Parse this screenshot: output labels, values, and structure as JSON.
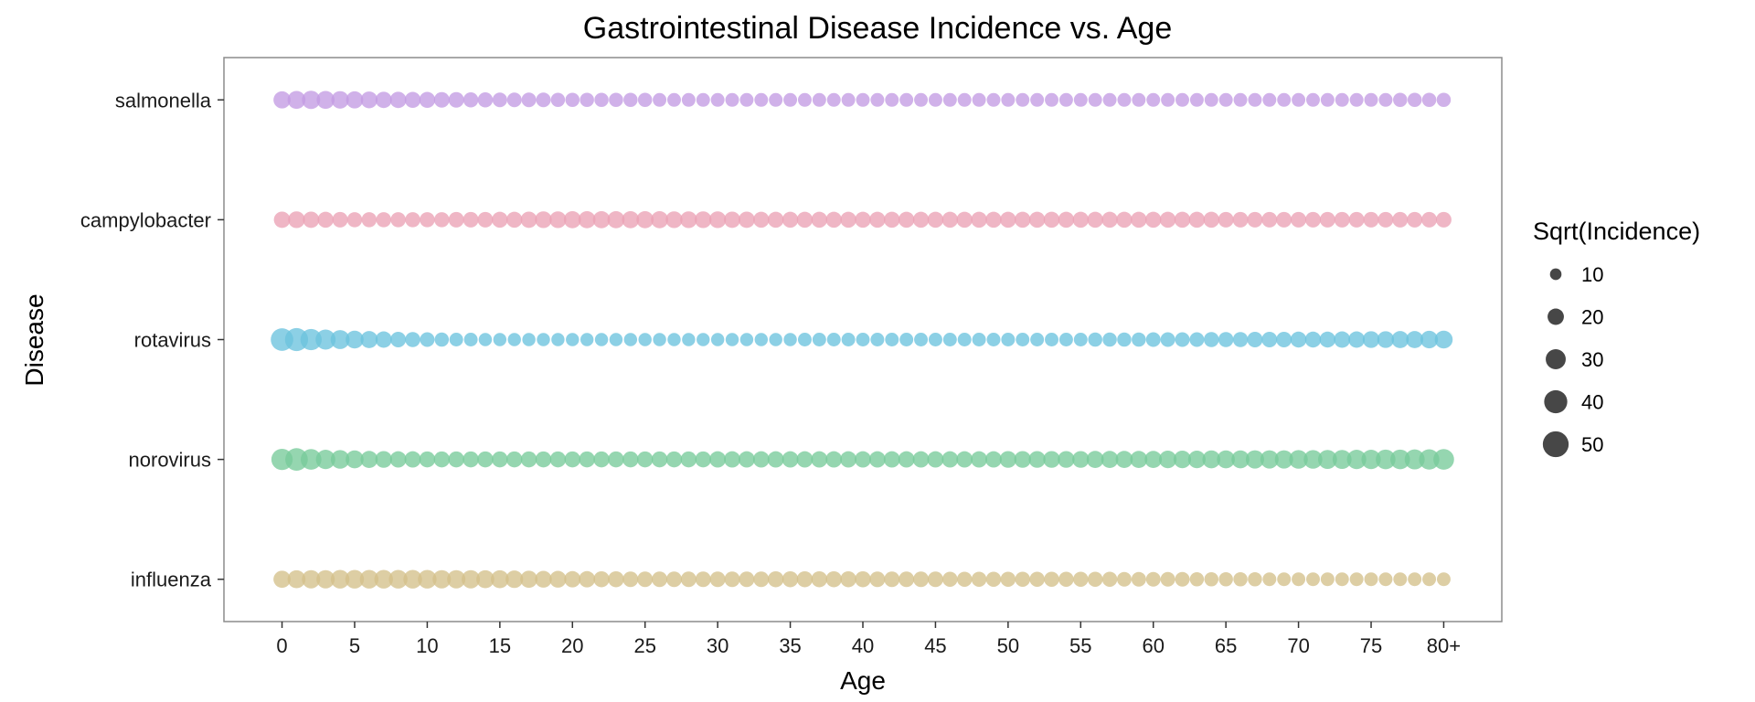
{
  "chart_data": {
    "type": "scatter",
    "title": "Gastrointestinal Disease Incidence vs. Age",
    "xlabel": "Age",
    "ylabel": "Disease",
    "x_tick_labels": [
      "0",
      "5",
      "10",
      "15",
      "20",
      "25",
      "30",
      "35",
      "40",
      "45",
      "50",
      "55",
      "60",
      "65",
      "70",
      "75",
      "80+"
    ],
    "x_ticks": [
      0,
      5,
      10,
      15,
      20,
      25,
      30,
      35,
      40,
      45,
      50,
      55,
      60,
      65,
      70,
      75,
      80
    ],
    "xlim": [
      -4,
      84
    ],
    "ages": [
      0,
      1,
      2,
      3,
      4,
      5,
      6,
      7,
      8,
      9,
      10,
      11,
      12,
      13,
      14,
      15,
      16,
      17,
      18,
      19,
      20,
      21,
      22,
      23,
      24,
      25,
      26,
      27,
      28,
      29,
      30,
      31,
      32,
      33,
      34,
      35,
      36,
      37,
      38,
      39,
      40,
      41,
      42,
      43,
      44,
      45,
      46,
      47,
      48,
      49,
      50,
      51,
      52,
      53,
      54,
      55,
      56,
      57,
      58,
      59,
      60,
      61,
      62,
      63,
      64,
      65,
      66,
      67,
      68,
      69,
      70,
      71,
      72,
      73,
      74,
      75,
      76,
      77,
      78,
      79,
      80
    ],
    "size_encoding": "Sqrt(Incidence)",
    "categories": [
      "salmonella",
      "campylobacter",
      "rotavirus",
      "norovirus",
      "influenza"
    ],
    "series": [
      {
        "name": "salmonella",
        "color": "#c39be3",
        "values": [
          22,
          24,
          25,
          24,
          23,
          22,
          21,
          20,
          20,
          19,
          19,
          18,
          18,
          17,
          17,
          16,
          16,
          16,
          16,
          15,
          15,
          15,
          15,
          15,
          15,
          15,
          14,
          14,
          14,
          14,
          14,
          14,
          14,
          14,
          14,
          14,
          14,
          14,
          14,
          14,
          14,
          14,
          14,
          14,
          14,
          14,
          14,
          14,
          14,
          14,
          14,
          14,
          14,
          14,
          14,
          14,
          14,
          14,
          14,
          14,
          14,
          14,
          14,
          14,
          14,
          14,
          14,
          14,
          14,
          14,
          14,
          14,
          14,
          14,
          14,
          14,
          14,
          15,
          15,
          15,
          15
        ]
      },
      {
        "name": "campylobacter",
        "color": "#eba2b5",
        "values": [
          20,
          21,
          20,
          19,
          18,
          17,
          17,
          17,
          17,
          17,
          17,
          17,
          18,
          18,
          18,
          19,
          19,
          20,
          21,
          21,
          22,
          22,
          22,
          22,
          22,
          22,
          22,
          21,
          21,
          21,
          21,
          20,
          20,
          19,
          19,
          19,
          19,
          19,
          19,
          19,
          19,
          19,
          19,
          19,
          19,
          19,
          19,
          19,
          19,
          19,
          19,
          19,
          19,
          19,
          19,
          19,
          19,
          19,
          19,
          19,
          19,
          19,
          19,
          19,
          19,
          18,
          18,
          18,
          18,
          18,
          18,
          18,
          18,
          18,
          18,
          18,
          18,
          18,
          18,
          18,
          18
        ]
      },
      {
        "name": "rotavirus",
        "color": "#6cc3de",
        "values": [
          38,
          40,
          34,
          30,
          27,
          24,
          22,
          20,
          18,
          17,
          16,
          15,
          14,
          14,
          13,
          13,
          13,
          13,
          13,
          13,
          13,
          13,
          13,
          13,
          13,
          13,
          13,
          13,
          13,
          13,
          13,
          13,
          13,
          13,
          13,
          13,
          14,
          14,
          14,
          14,
          14,
          14,
          14,
          14,
          14,
          14,
          14,
          14,
          14,
          14,
          14,
          14,
          14,
          14,
          14,
          14,
          15,
          15,
          15,
          15,
          16,
          16,
          16,
          16,
          17,
          17,
          17,
          18,
          18,
          18,
          19,
          19,
          19,
          20,
          20,
          21,
          21,
          22,
          22,
          23,
          24
        ]
      },
      {
        "name": "norovirus",
        "color": "#77ca9a",
        "values": [
          34,
          38,
          32,
          28,
          26,
          24,
          22,
          21,
          20,
          20,
          19,
          19,
          19,
          19,
          19,
          19,
          19,
          19,
          19,
          19,
          19,
          19,
          19,
          19,
          19,
          19,
          19,
          19,
          19,
          19,
          20,
          20,
          20,
          20,
          20,
          20,
          20,
          20,
          20,
          20,
          20,
          20,
          20,
          20,
          20,
          20,
          20,
          20,
          20,
          20,
          21,
          21,
          21,
          21,
          21,
          21,
          22,
          22,
          22,
          22,
          22,
          23,
          23,
          23,
          24,
          24,
          24,
          25,
          25,
          25,
          26,
          26,
          27,
          27,
          28,
          28,
          29,
          29,
          30,
          31,
          32
        ]
      },
      {
        "name": "influenza",
        "color": "#d4c08a",
        "values": [
          22,
          24,
          25,
          25,
          26,
          26,
          26,
          26,
          26,
          26,
          26,
          25,
          25,
          25,
          24,
          24,
          23,
          22,
          21,
          21,
          20,
          20,
          19,
          19,
          18,
          18,
          18,
          18,
          18,
          18,
          18,
          18,
          18,
          18,
          19,
          19,
          19,
          19,
          19,
          19,
          19,
          18,
          18,
          18,
          18,
          18,
          17,
          17,
          17,
          17,
          17,
          17,
          17,
          17,
          17,
          17,
          17,
          17,
          16,
          16,
          16,
          16,
          16,
          15,
          15,
          15,
          15,
          15,
          14,
          14,
          14,
          14,
          14,
          14,
          14,
          14,
          14,
          14,
          14,
          14,
          14
        ]
      }
    ],
    "legend": {
      "title": "Sqrt(Incidence)",
      "placement": "right",
      "color": "#333333",
      "items": [
        {
          "label": "10",
          "value": 10
        },
        {
          "label": "20",
          "value": 20
        },
        {
          "label": "30",
          "value": 30
        },
        {
          "label": "40",
          "value": 40
        },
        {
          "label": "50",
          "value": 50
        }
      ]
    },
    "grid": false
  }
}
